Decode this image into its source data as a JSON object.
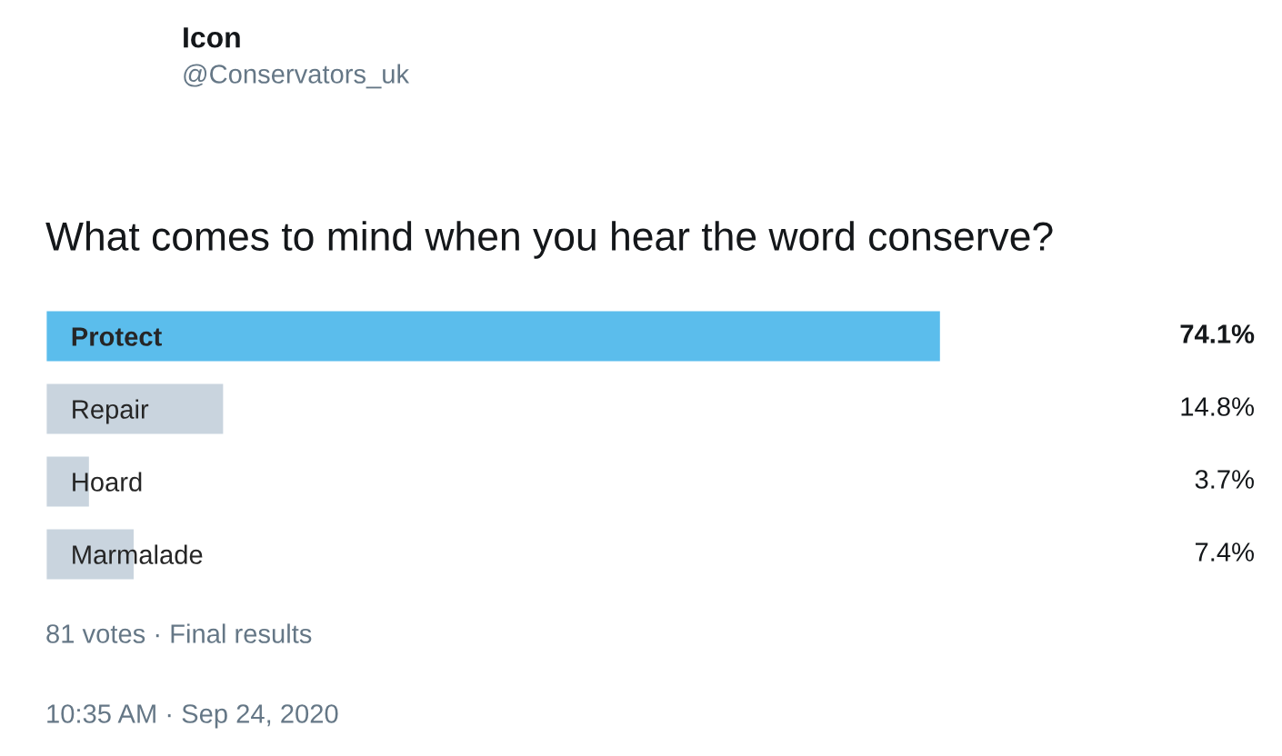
{
  "chart_data": {
    "type": "bar",
    "orientation": "horizontal",
    "title": "What comes to mind when you hear the word conserve?",
    "categories": [
      "Protect",
      "Repair",
      "Hoard",
      "Marmalade"
    ],
    "values": [
      74.1,
      14.8,
      3.7,
      7.4
    ],
    "colors": [
      "#5bbdec",
      "#c9d4de",
      "#c9d4de",
      "#c9d4de"
    ],
    "value_labels": [
      "74.1%",
      "14.8%",
      "3.7%",
      "7.4%"
    ],
    "tick_labels": "y",
    "grid": false,
    "legend": false,
    "annotations": [
      "Icon",
      "@Conservators_uk",
      "81 votes · Final results",
      "10:35 AM · Sep 24, 2020"
    ]
  }
}
